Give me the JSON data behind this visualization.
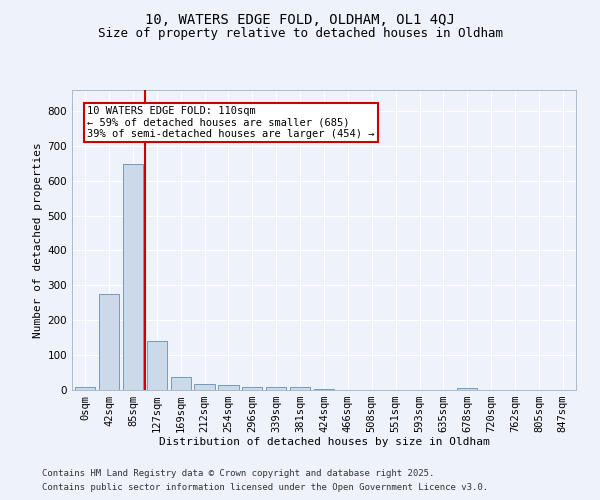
{
  "title_line1": "10, WATERS EDGE FOLD, OLDHAM, OL1 4QJ",
  "title_line2": "Size of property relative to detached houses in Oldham",
  "xlabel": "Distribution of detached houses by size in Oldham",
  "ylabel": "Number of detached properties",
  "bar_color": "#ccd9e8",
  "bar_edge_color": "#7799bb",
  "background_color": "#eef2fa",
  "grid_color": "#ffffff",
  "bins": [
    "0sqm",
    "42sqm",
    "85sqm",
    "127sqm",
    "169sqm",
    "212sqm",
    "254sqm",
    "296sqm",
    "339sqm",
    "381sqm",
    "424sqm",
    "466sqm",
    "508sqm",
    "551sqm",
    "593sqm",
    "635sqm",
    "678sqm",
    "720sqm",
    "762sqm",
    "805sqm",
    "847sqm"
  ],
  "values": [
    8,
    275,
    648,
    140,
    38,
    18,
    13,
    10,
    10,
    8,
    3,
    0,
    0,
    0,
    0,
    0,
    5,
    0,
    0,
    0,
    0
  ],
  "vline_x": 2.5,
  "vline_color": "#cc0000",
  "annotation_text": "10 WATERS EDGE FOLD: 110sqm\n← 59% of detached houses are smaller (685)\n39% of semi-detached houses are larger (454) →",
  "annotation_box_color": "#ffffff",
  "annotation_box_edge_color": "#cc0000",
  "ylim": [
    0,
    860
  ],
  "yticks": [
    0,
    100,
    200,
    300,
    400,
    500,
    600,
    700,
    800
  ],
  "footer_line1": "Contains HM Land Registry data © Crown copyright and database right 2025.",
  "footer_line2": "Contains public sector information licensed under the Open Government Licence v3.0.",
  "title_fontsize": 10,
  "subtitle_fontsize": 9,
  "axis_label_fontsize": 8,
  "tick_fontsize": 7.5,
  "annotation_fontsize": 7.5,
  "footer_fontsize": 6.5
}
